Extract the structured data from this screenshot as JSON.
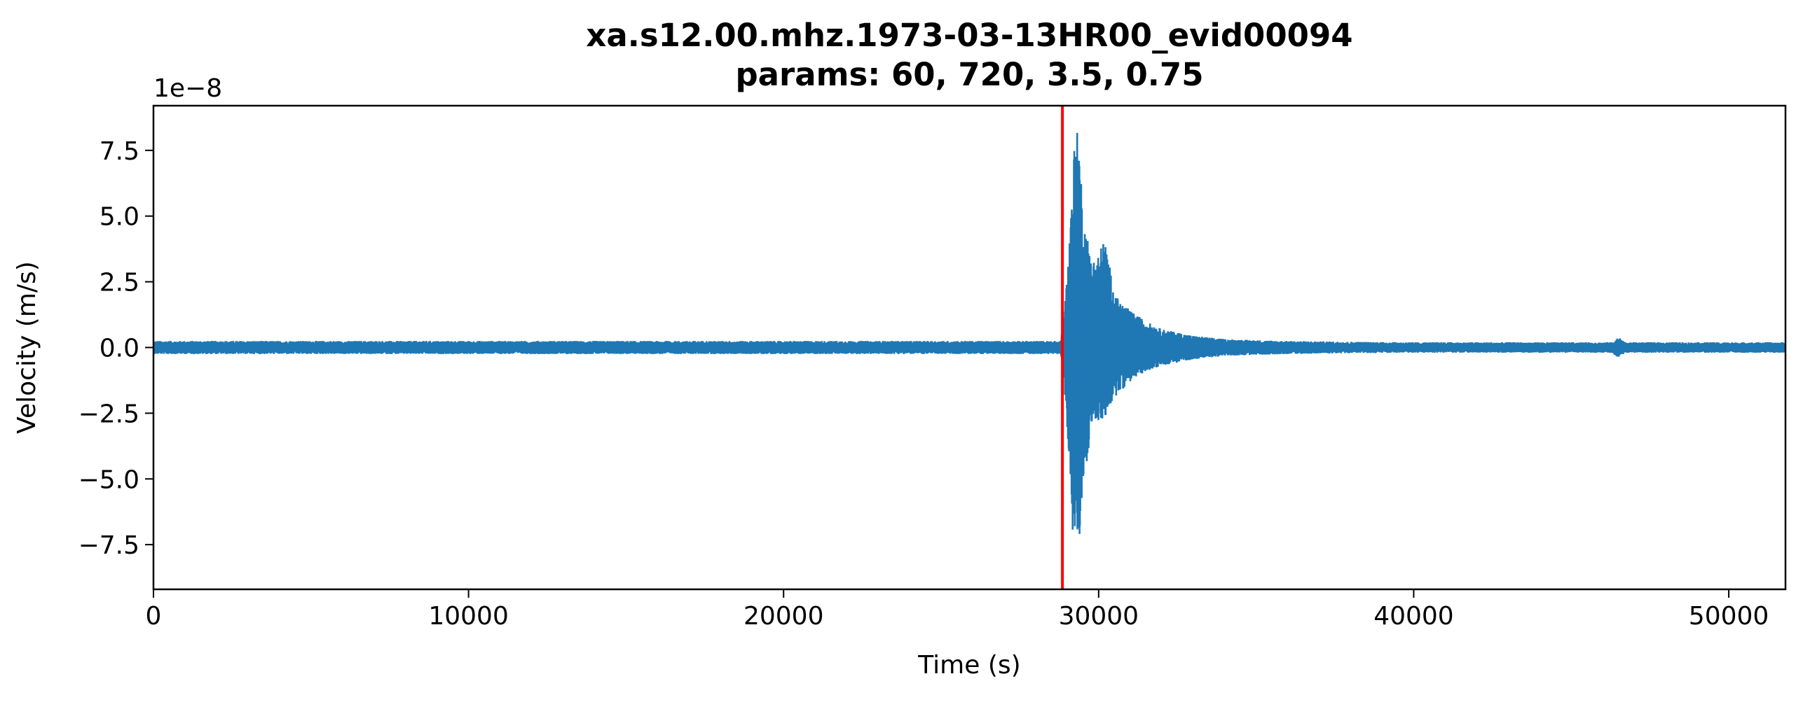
{
  "chart_data": {
    "type": "line",
    "title": "xa.s12.00.mhz.1973-03-13HR00_evid00094",
    "subtitle": "params: 60, 720, 3.5, 0.75",
    "xlabel": "Time (s)",
    "ylabel": "Velocity (m/s)",
    "y_offset_label": "1e−8",
    "xlim": [
      0,
      51800
    ],
    "ylim": [
      -9.2,
      9.2
    ],
    "y_scale_factor": 1e-08,
    "x_ticks": [
      0,
      10000,
      20000,
      30000,
      40000,
      50000
    ],
    "x_tick_labels": [
      "0",
      "10000",
      "20000",
      "30000",
      "40000",
      "50000"
    ],
    "y_ticks": [
      7.5,
      5.0,
      2.5,
      0.0,
      -2.5,
      -5.0,
      -7.5
    ],
    "y_tick_labels": [
      "7.5",
      "5.0",
      "2.5",
      "0.0",
      "−2.5",
      "−5.0",
      "−7.5"
    ],
    "grid": false,
    "series": [
      {
        "color": "#1f77b4",
        "envelope": {
          "x": [
            0,
            28800,
            28950,
            29050,
            29200,
            29300,
            29400,
            29500,
            29650,
            29800,
            30000,
            30200,
            30500,
            31000,
            31500,
            32000,
            33000,
            34000,
            35000,
            36000,
            38000,
            40000,
            46300,
            46500,
            46700,
            50000,
            51800
          ],
          "upper": [
            0.25,
            0.25,
            2.0,
            3.5,
            7.5,
            8.3,
            7.8,
            5.0,
            4.2,
            3.3,
            3.6,
            4.2,
            2.0,
            1.4,
            1.0,
            0.7,
            0.45,
            0.32,
            0.28,
            0.25,
            0.22,
            0.2,
            0.2,
            0.4,
            0.2,
            0.2,
            0.2
          ],
          "lower": [
            -0.25,
            -0.25,
            -2.0,
            -4.0,
            -7.8,
            -8.3,
            -7.6,
            -5.0,
            -4.2,
            -2.7,
            -2.9,
            -2.7,
            -1.9,
            -1.3,
            -0.9,
            -0.7,
            -0.45,
            -0.32,
            -0.28,
            -0.25,
            -0.22,
            -0.2,
            -0.2,
            -0.4,
            -0.2,
            -0.2,
            -0.2
          ]
        }
      }
    ],
    "annotations": [
      {
        "type": "vline",
        "x": 28850,
        "color": "#ff0000"
      }
    ]
  }
}
